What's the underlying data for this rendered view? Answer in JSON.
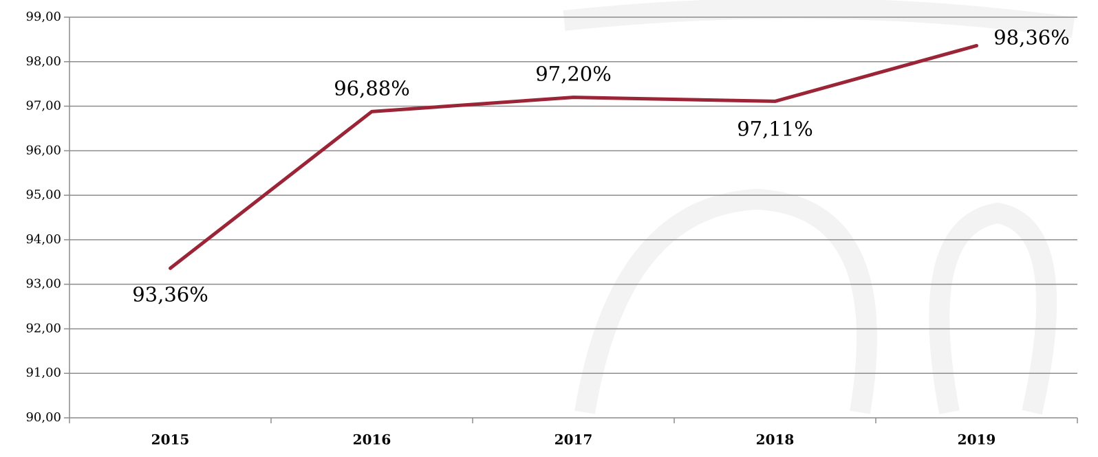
{
  "chart_data": {
    "type": "line",
    "categories": [
      "2015",
      "2016",
      "2017",
      "2018",
      "2019"
    ],
    "series": [
      {
        "color": "#9b2437",
        "values": [
          93.36,
          96.88,
          97.2,
          97.11,
          98.36
        ],
        "value_labels": [
          "93,36%",
          "96,88%",
          "97,20%",
          "97,11%",
          "98,36%"
        ]
      }
    ],
    "ylim": [
      90,
      99
    ],
    "yticks": [
      {
        "value": 90,
        "label": "90,00"
      },
      {
        "value": 91,
        "label": "91,00"
      },
      {
        "value": 92,
        "label": "92,00"
      },
      {
        "value": 93,
        "label": "93,00"
      },
      {
        "value": 94,
        "label": "94,00"
      },
      {
        "value": 95,
        "label": "95,00"
      },
      {
        "value": 96,
        "label": "96,00"
      },
      {
        "value": 97,
        "label": "97,00"
      },
      {
        "value": 98,
        "label": "98,00"
      },
      {
        "value": 99,
        "label": "99,00"
      }
    ],
    "grid": true
  }
}
